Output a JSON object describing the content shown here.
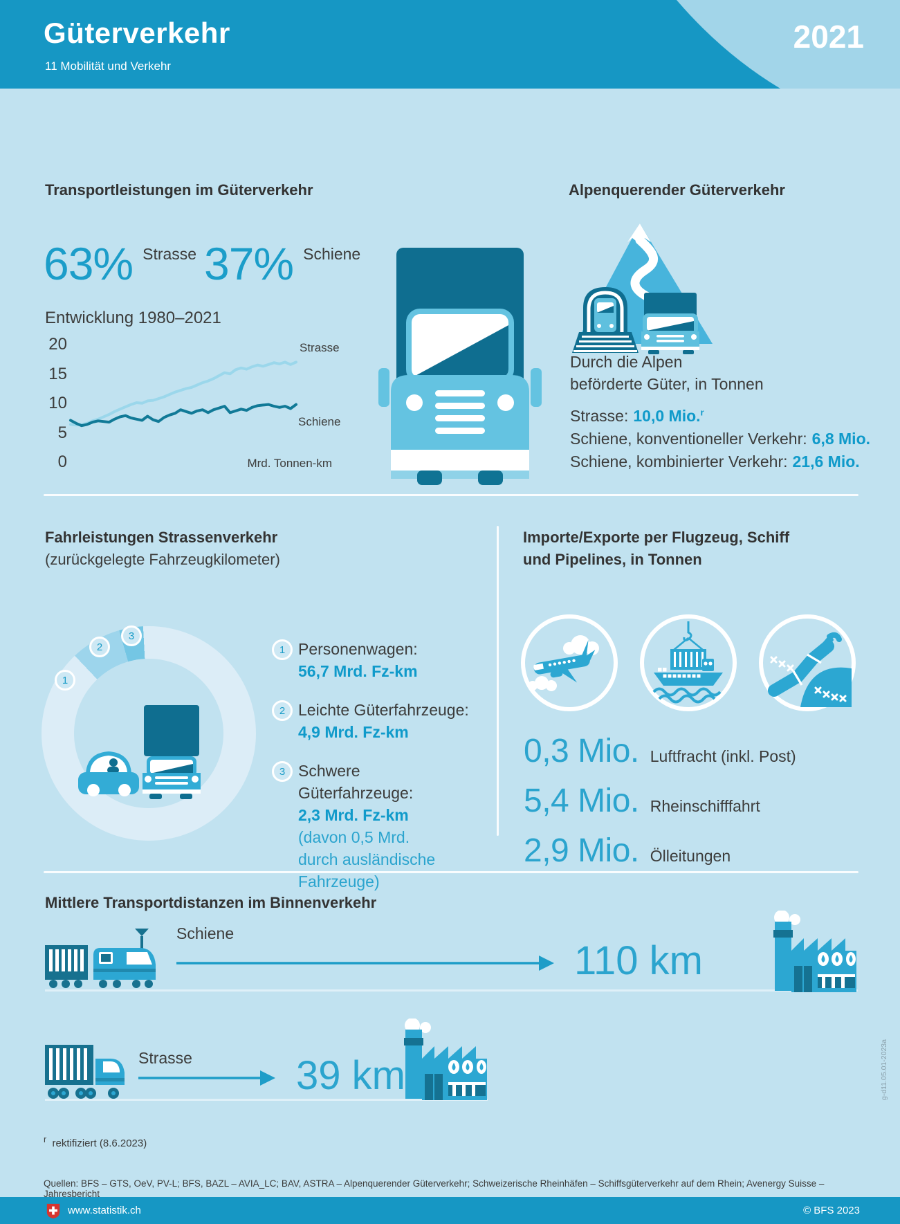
{
  "header": {
    "title": "Güterverkehr",
    "subtitle": "11 Mobilität und Verkehr",
    "year": "2021"
  },
  "transport": {
    "heading": "Transportleistungen im Güterverkehr",
    "modal_split": [
      {
        "value": "63%",
        "label": "Strasse"
      },
      {
        "value": "37%",
        "label": "Schiene"
      }
    ],
    "chart_title": "Entwicklung 1980–2021"
  },
  "alpine": {
    "heading": "Alpenquerender Güterverkehr",
    "intro1": "Durch die Alpen",
    "intro2": "beförderte Güter, in Tonnen",
    "rows": [
      {
        "label": "Strasse:",
        "value": "10,0 Mio.",
        "sup": "r"
      },
      {
        "label": "Schiene, konventioneller Verkehr:",
        "value": "6,8 Mio."
      },
      {
        "label": "Schiene, kombinierter Verkehr:",
        "value": "21,6 Mio."
      }
    ]
  },
  "mileage": {
    "heading": "Fahrleistungen Strassenverkehr",
    "subheading": "(zurückgelegte Fahrzeugkilometer)",
    "legend": [
      {
        "num": "1",
        "label": "Personenwagen:",
        "value": "56,7 Mrd. Fz-km"
      },
      {
        "num": "2",
        "label": "Leichte Güterfahrzeuge:",
        "value": "4,9 Mrd. Fz-km"
      },
      {
        "num": "3",
        "label": "Schwere Güterfahrzeuge:",
        "value": "2,3 Mrd. Fz-km",
        "note_lines": [
          "(davon 0,5 Mrd.",
          "durch ausländische",
          "Fahrzeuge)"
        ]
      }
    ]
  },
  "imports": {
    "heading1": "Importe/Exporte per Flugzeug, Schiff",
    "heading2": "und Pipelines, in Tonnen",
    "stats": [
      {
        "value": "0,3 Mio.",
        "label": "Luftfracht (inkl. Post)"
      },
      {
        "value": "5,4 Mio.",
        "label": "Rheinschifffahrt"
      },
      {
        "value": "2,9 Mio.",
        "label": "Ölleitungen"
      }
    ]
  },
  "distances": {
    "heading": "Mittlere Transportdistanzen im Binnenverkehr",
    "rows": [
      {
        "mode": "Schiene",
        "value": "110 km"
      },
      {
        "mode": "Strasse",
        "value": "39 km"
      }
    ]
  },
  "footer": {
    "footnote_sup": "r",
    "footnote_text": "rektifiziert (8.6.2023)",
    "sources": "Quellen: BFS – GTS, OeV, PV-L; BFS, BAZL – AVIA_LC; BAV, ASTRA – Alpenquerender Güterverkehr; Schweizerische Rheinhäfen – Schiffsgüterverkehr auf dem Rhein; Avenergy Suisse – Jahresbericht",
    "code": "g-d11.05.01-2023a",
    "site": "www.statistik.ch",
    "copyright": "© BFS 2023"
  },
  "chart_data": [
    {
      "type": "line",
      "title": "Entwicklung 1980–2021",
      "x_start": 1980,
      "x_end": 2021,
      "unit": "Mrd. Tonnen-km",
      "ylim": [
        0,
        20
      ],
      "yticks": [
        20,
        15,
        10,
        5,
        0
      ],
      "grid": false,
      "legend_position": "inline-right",
      "series": [
        {
          "name": "Strasse",
          "color": "#9bd7eb",
          "values": [
            6.3,
            6.2,
            6.3,
            6.5,
            6.9,
            7.2,
            7.6,
            8.0,
            8.5,
            8.9,
            9.3,
            9.7,
            10.0,
            9.9,
            10.3,
            10.4,
            10.7,
            11.0,
            11.4,
            11.8,
            12.1,
            12.4,
            12.6,
            13.0,
            13.4,
            13.7,
            14.1,
            14.6,
            15.1,
            14.9,
            15.6,
            15.9,
            15.7,
            16.1,
            16.4,
            16.2,
            16.5,
            16.8,
            16.6,
            16.9,
            16.5,
            16.9
          ]
        },
        {
          "name": "Schiene",
          "color": "#117a97",
          "values": [
            7.0,
            6.5,
            6.1,
            6.3,
            6.7,
            6.9,
            6.8,
            6.7,
            7.2,
            7.6,
            7.8,
            7.4,
            7.2,
            7.0,
            7.7,
            7.1,
            6.8,
            7.5,
            7.9,
            8.2,
            8.8,
            8.5,
            8.2,
            8.6,
            8.8,
            8.3,
            8.8,
            9.1,
            9.4,
            8.3,
            8.6,
            8.9,
            8.7,
            9.2,
            9.5,
            9.6,
            9.7,
            9.4,
            9.2,
            9.4,
            9.0,
            9.7
          ]
        }
      ]
    },
    {
      "type": "pie",
      "title": "Fahrleistungen Strassenverkehr",
      "labels": [
        "Personenwagen",
        "Leichte Güterfahrzeuge",
        "Schwere Güterfahrzeuge"
      ],
      "values": [
        56.7,
        4.9,
        2.3
      ],
      "unit": "Mrd. Fz-km",
      "colors": [
        "#dcedf7",
        "#9dd5ec",
        "#74c6e4"
      ]
    }
  ]
}
